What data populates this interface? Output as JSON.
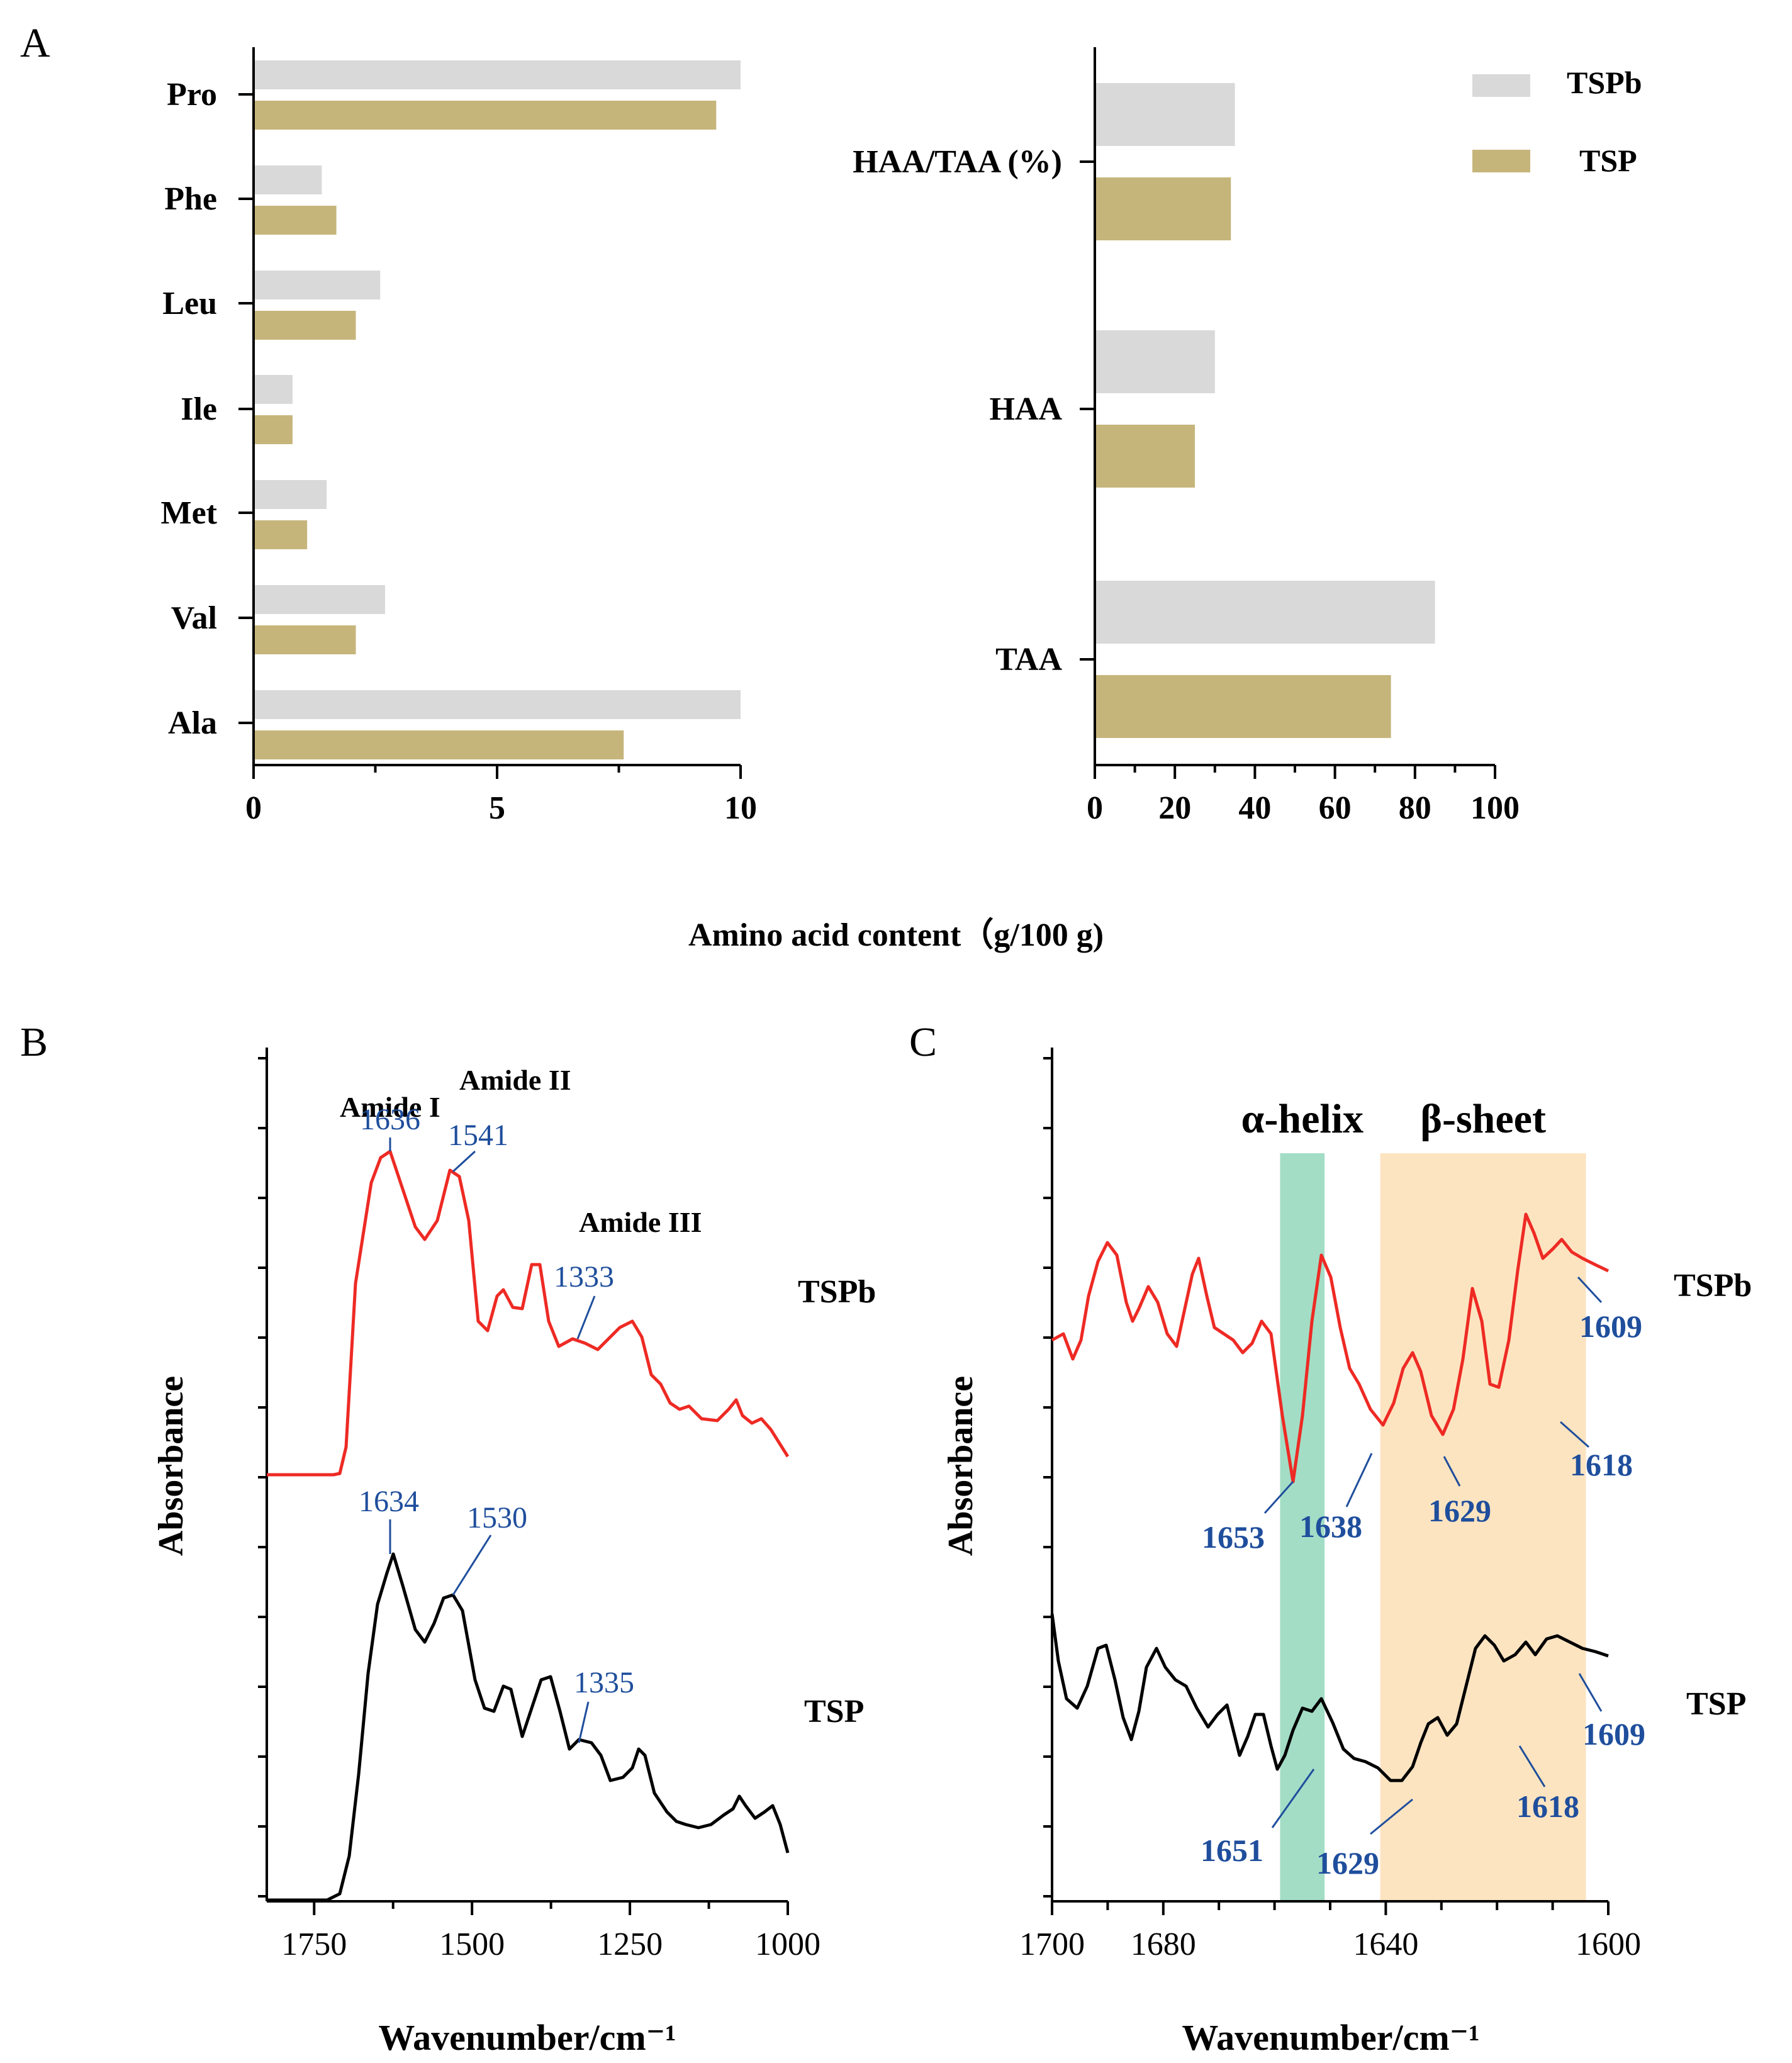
{
  "panels": {
    "A": {
      "letter": "A"
    },
    "B": {
      "letter": "B"
    },
    "C": {
      "letter": "C"
    }
  },
  "colors": {
    "TSPb_bar": "#d9d9d9",
    "TSP_bar": "#c6b57b",
    "TSPb_line": "#ee2a24",
    "TSP_line": "#000000",
    "annot": "#1f4e9c",
    "alpha": "#a3ddc6",
    "beta": "#fde4c1"
  },
  "chart_data": [
    {
      "id": "A-left",
      "type": "bar",
      "orientation": "horizontal",
      "categories": [
        "Pro",
        "Phe",
        "Leu",
        "Ile",
        "Met",
        "Val",
        "Ala"
      ],
      "series": [
        {
          "name": "TSPb",
          "values": [
            10.0,
            1.4,
            2.6,
            0.8,
            1.5,
            2.7,
            10.0
          ]
        },
        {
          "name": "TSP",
          "values": [
            9.5,
            1.7,
            2.1,
            0.8,
            1.1,
            2.1,
            7.6
          ]
        }
      ],
      "xlim": [
        0,
        10
      ],
      "xticks": [
        "0",
        "5",
        "10"
      ]
    },
    {
      "id": "A-right",
      "type": "bar",
      "orientation": "horizontal",
      "categories": [
        "HAA/TAA (%)",
        "HAA",
        "TAA"
      ],
      "series": [
        {
          "name": "TSPb",
          "values": [
            35,
            30,
            85
          ]
        },
        {
          "name": "TSP",
          "values": [
            34,
            25,
            74
          ]
        }
      ],
      "xlim": [
        0,
        100
      ],
      "xticks": [
        "0",
        "20",
        "40",
        "60",
        "80",
        "100"
      ],
      "legend": [
        "TSPb",
        "TSP"
      ],
      "legend_position": "top-right"
    },
    {
      "id": "A-shared",
      "xlabel": "Amino acid content（g/100 g)"
    },
    {
      "id": "B",
      "type": "line",
      "xlabel": "Wavenumber/cm⁻¹",
      "ylabel": "Absorbance",
      "xlim": [
        1825,
        1000
      ],
      "xticks": [
        "1750",
        "1500",
        "1250",
        "1000"
      ],
      "series": [
        {
          "name": "TSPb",
          "peaks": [
            "1636",
            "1541",
            "1333"
          ]
        },
        {
          "name": "TSP",
          "peaks": [
            "1634",
            "1530",
            "1335"
          ]
        }
      ],
      "annotations": [
        "Amide I",
        "Amide II",
        "Amide III"
      ]
    },
    {
      "id": "C",
      "type": "line",
      "xlabel": "Wavenumber/cm⁻¹",
      "ylabel": "Absorbance",
      "xlim": [
        1700,
        1600
      ],
      "xticks": [
        "1700",
        "1680",
        "1640",
        "1600"
      ],
      "regions": [
        {
          "label": "α-helix",
          "range": [
            1651,
            1659
          ]
        },
        {
          "label": "β-sheet",
          "range": [
            1604,
            1641
          ]
        }
      ],
      "series": [
        {
          "name": "TSPb",
          "peaks": [
            "1653",
            "1638",
            "1629",
            "1618",
            "1609"
          ]
        },
        {
          "name": "TSP",
          "peaks": [
            "1651",
            "1629",
            "1618",
            "1609"
          ]
        }
      ]
    }
  ]
}
